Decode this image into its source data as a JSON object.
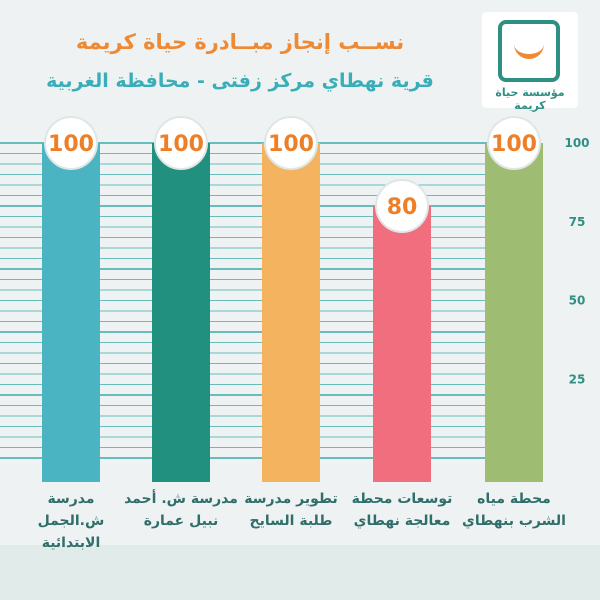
{
  "title": "نســب إنجاز مبــادرة حياة كريمة",
  "subtitle": "قرية نهطاي مركز زفتى - محافظة الغربية",
  "logo": {
    "label": "مؤسسة حياة كريمة",
    "colors": {
      "box": "#2e8f83",
      "smile": "#ef8a34"
    }
  },
  "chart_data": {
    "type": "bar",
    "categories": [
      "مدرسة\nش.الجمل الابتدائية",
      "مدرسة ش. أحمد\nنبيل عمارة",
      "تطوير مدرسة\nطلبة السايح",
      "توسعات محطة\nمعالجة نهطاي",
      "محطة مياه\nالشرب بنهطاي"
    ],
    "values": [
      100,
      100,
      100,
      80,
      100
    ],
    "colors": [
      "#4bb4c3",
      "#22907f",
      "#f4b35f",
      "#f06e7e",
      "#9ebc72"
    ],
    "ylim": [
      0,
      100
    ],
    "yticks": [
      25,
      50,
      75,
      100
    ],
    "grid": true,
    "data_labels": true
  }
}
